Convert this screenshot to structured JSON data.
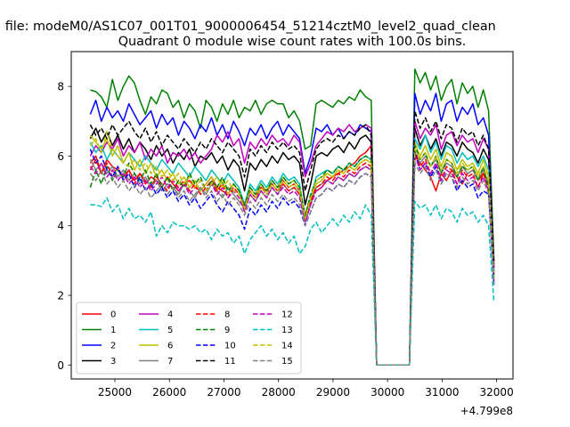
{
  "chart_data": {
    "type": "line",
    "suptitle": "n file: modeM0/AS1C07_001T01_9000006454_51214cztM0_level2_quad_clean",
    "title": "Quadrant 0 module wise count rates with 100.0s bins.",
    "xlabel": "",
    "ylabel": "",
    "x_offset_label": "+4.799e8",
    "xlim": [
      24200,
      32300
    ],
    "ylim": [
      -0.4,
      9.0
    ],
    "xticks": [
      25000,
      26000,
      27000,
      28000,
      29000,
      30000,
      31000,
      32000
    ],
    "yticks": [
      0,
      2,
      4,
      6,
      8
    ],
    "grid": false,
    "legend_placement": "lower-left",
    "segments": [
      [
        24550,
        29700
      ],
      [
        29800,
        30400
      ],
      [
        30500,
        31950
      ]
    ],
    "series": [
      {
        "name": "0",
        "color": "#ff0000",
        "dash": "solid",
        "values1": [
          5.8,
          6.0,
          5.5,
          5.9,
          5.7,
          5.6,
          5.4,
          5.6,
          5.3,
          5.5,
          5.2,
          5.4,
          5.3,
          5.1,
          5.4,
          5.2,
          5.0,
          5.2,
          5.3,
          5.1,
          5.0,
          5.2,
          5.4,
          5.1,
          5.0,
          4.9,
          5.2,
          5.0,
          4.5,
          5.0,
          4.8,
          5.1,
          5.0,
          5.2,
          5.0,
          5.3,
          5.1,
          5.2,
          5.0,
          4.3,
          4.8,
          5.0,
          5.1,
          5.3,
          5.4,
          5.5,
          5.6,
          5.7,
          5.8,
          6.0,
          6.1,
          6.3
        ],
        "values2": [
          6.0,
          5.8,
          5.6,
          5.4,
          5.0,
          5.5,
          5.3,
          5.6,
          5.4,
          5.2,
          5.5,
          5.6,
          5.3,
          5.5,
          5.2,
          2.8
        ]
      },
      {
        "name": "1",
        "color": "#008000",
        "dash": "solid",
        "values1": [
          7.9,
          7.85,
          7.7,
          7.4,
          8.2,
          7.6,
          8.0,
          8.3,
          8.1,
          7.6,
          7.2,
          7.7,
          7.5,
          7.9,
          7.8,
          7.4,
          7.6,
          7.1,
          7.5,
          7.3,
          6.8,
          7.6,
          7.4,
          7.0,
          7.5,
          7.2,
          7.6,
          7.1,
          7.4,
          7.3,
          7.6,
          7.2,
          7.5,
          7.6,
          7.5,
          7.5,
          7.1,
          7.3,
          7.0,
          6.2,
          6.3,
          7.5,
          7.6,
          7.5,
          7.4,
          7.6,
          7.5,
          7.7,
          7.6,
          7.9,
          7.7,
          7.6
        ],
        "values2": [
          8.5,
          8.1,
          8.4,
          7.9,
          8.3,
          7.6,
          8.0,
          8.2,
          7.5,
          8.1,
          7.8,
          8.0,
          7.4,
          7.9,
          7.3,
          3.0
        ]
      },
      {
        "name": "2",
        "color": "#0000ff",
        "dash": "solid",
        "values1": [
          7.2,
          7.6,
          7.0,
          7.4,
          7.1,
          7.3,
          7.0,
          7.5,
          7.2,
          6.9,
          7.1,
          7.3,
          6.8,
          7.2,
          6.9,
          7.1,
          6.6,
          7.0,
          6.8,
          6.5,
          6.9,
          6.7,
          7.1,
          6.6,
          6.9,
          6.5,
          7.0,
          6.7,
          6.3,
          6.8,
          6.6,
          6.9,
          6.5,
          6.8,
          7.0,
          6.6,
          6.9,
          6.7,
          6.5,
          5.5,
          6.0,
          6.8,
          6.7,
          6.9,
          6.6,
          6.8,
          6.5,
          6.7,
          6.6,
          6.9,
          6.8,
          6.7
        ],
        "values2": [
          7.8,
          7.2,
          7.6,
          7.3,
          7.8,
          7.0,
          7.5,
          7.6,
          7.0,
          7.4,
          7.2,
          7.5,
          6.9,
          7.1,
          6.6,
          2.7
        ]
      },
      {
        "name": "3",
        "color": "#000000",
        "dash": "solid",
        "values1": [
          6.5,
          6.8,
          6.4,
          6.7,
          6.3,
          6.6,
          6.2,
          6.5,
          6.1,
          6.4,
          6.2,
          5.9,
          6.3,
          6.0,
          6.2,
          5.8,
          6.1,
          5.9,
          6.2,
          5.7,
          6.0,
          5.9,
          6.1,
          5.8,
          6.0,
          5.6,
          5.9,
          5.7,
          5.0,
          5.8,
          5.6,
          5.9,
          5.7,
          6.0,
          5.8,
          6.1,
          5.9,
          6.0,
          5.8,
          4.6,
          5.2,
          6.0,
          6.1,
          6.0,
          6.2,
          6.3,
          6.1,
          6.4,
          6.2,
          6.5,
          6.6,
          6.4
        ],
        "values2": [
          6.8,
          6.3,
          6.6,
          6.2,
          6.5,
          6.0,
          6.4,
          6.3,
          6.0,
          6.4,
          6.2,
          6.1,
          5.8,
          6.2,
          5.9,
          2.9
        ]
      },
      {
        "name": "4",
        "color": "#bf00bf",
        "dash": "solid",
        "values1": [
          6.0,
          6.3,
          6.1,
          6.4,
          6.2,
          6.5,
          6.0,
          6.3,
          6.1,
          6.4,
          5.9,
          6.2,
          6.0,
          6.3,
          5.8,
          6.1,
          6.0,
          6.2,
          5.9,
          6.1,
          5.8,
          6.0,
          6.2,
          6.6,
          6.4,
          6.7,
          6.3,
          6.5,
          5.8,
          6.4,
          6.2,
          6.5,
          6.3,
          6.6,
          6.4,
          6.5,
          6.3,
          6.6,
          6.4,
          5.4,
          5.8,
          6.3,
          6.5,
          6.7,
          6.6,
          6.8,
          6.7,
          6.9,
          6.7,
          6.8,
          6.9,
          6.8
        ],
        "values2": [
          7.0,
          6.5,
          6.8,
          6.6,
          6.9,
          6.2,
          6.6,
          6.7,
          6.3,
          6.6,
          6.4,
          6.5,
          6.1,
          6.5,
          6.2,
          2.8
        ]
      },
      {
        "name": "5",
        "color": "#00bfbf",
        "dash": "solid",
        "values1": [
          6.4,
          6.1,
          6.3,
          5.9,
          6.2,
          6.0,
          5.8,
          6.1,
          5.9,
          5.7,
          6.0,
          5.8,
          5.6,
          5.9,
          5.7,
          5.5,
          5.8,
          5.6,
          5.4,
          5.7,
          5.5,
          5.3,
          5.6,
          5.4,
          5.2,
          5.5,
          5.3,
          5.1,
          4.6,
          5.2,
          5.0,
          5.3,
          5.1,
          5.4,
          5.2,
          5.5,
          5.3,
          5.4,
          5.2,
          4.2,
          4.8,
          5.4,
          5.5,
          5.6,
          5.5,
          5.7,
          5.6,
          5.8,
          5.7,
          5.9,
          6.0,
          5.9
        ],
        "values2": [
          6.5,
          6.2,
          6.6,
          6.1,
          6.4,
          5.9,
          6.3,
          6.2,
          5.8,
          6.1,
          5.9,
          6.0,
          5.7,
          6.0,
          5.6,
          2.5
        ]
      },
      {
        "name": "6",
        "color": "#bfbf00",
        "dash": "solid",
        "values1": [
          6.6,
          6.4,
          6.2,
          6.5,
          6.0,
          6.3,
          5.8,
          6.1,
          5.6,
          5.9,
          5.5,
          5.8,
          5.4,
          5.6,
          5.3,
          5.5,
          5.2,
          5.4,
          5.1,
          5.3,
          5.0,
          5.2,
          5.4,
          5.0,
          5.3,
          4.9,
          5.2,
          5.0,
          4.4,
          5.1,
          4.9,
          5.2,
          5.0,
          5.3,
          5.1,
          5.4,
          5.2,
          5.3,
          5.1,
          4.2,
          4.7,
          5.2,
          5.3,
          5.5,
          5.4,
          5.6,
          5.5,
          5.7,
          5.6,
          5.8,
          5.9,
          5.8
        ],
        "values2": [
          6.4,
          6.0,
          6.3,
          5.9,
          6.2,
          5.7,
          6.1,
          6.0,
          5.6,
          5.9,
          5.7,
          5.8,
          5.5,
          5.9,
          5.4,
          2.4
        ]
      },
      {
        "name": "7",
        "color": "#808080",
        "dash": "solid",
        "values1": [
          5.9,
          5.6,
          5.8,
          5.5,
          5.7,
          5.4,
          5.6,
          5.3,
          5.5,
          5.2,
          5.4,
          5.1,
          5.3,
          5.0,
          5.2,
          5.1,
          4.9,
          5.2,
          5.0,
          4.8,
          5.1,
          4.9,
          5.2,
          5.0,
          4.8,
          5.1,
          4.9,
          4.7,
          4.5,
          4.9,
          4.7,
          5.0,
          4.8,
          5.1,
          4.9,
          5.2,
          5.0,
          5.1,
          4.9,
          4.1,
          4.6,
          5.1,
          5.2,
          5.3,
          5.2,
          5.4,
          5.3,
          5.5,
          5.4,
          5.6,
          5.7,
          5.6
        ],
        "values2": [
          6.1,
          5.8,
          6.0,
          5.7,
          5.9,
          5.5,
          5.8,
          5.7,
          5.4,
          5.7,
          5.5,
          5.6,
          5.3,
          5.6,
          5.2,
          2.6
        ]
      },
      {
        "name": "8",
        "color": "#ff0000",
        "dash": "dashed",
        "values1": [
          5.6,
          5.9,
          5.5,
          5.8,
          5.4,
          5.7,
          5.3,
          5.6,
          5.2,
          5.5,
          5.3,
          5.1,
          5.4,
          5.2,
          5.0,
          5.3,
          5.1,
          5.3,
          5.0,
          5.2,
          4.9,
          5.1,
          5.3,
          5.0,
          5.2,
          4.8,
          5.1,
          4.9,
          4.6,
          5.0,
          4.8,
          5.1,
          4.9,
          5.2,
          5.0,
          5.2,
          5.0,
          5.1,
          4.9,
          4.2,
          4.7,
          5.1,
          5.2,
          5.4,
          5.3,
          5.5,
          5.4,
          5.6,
          5.5,
          5.7,
          5.8,
          5.7
        ],
        "values2": [
          6.2,
          5.7,
          5.9,
          5.5,
          5.8,
          5.3,
          5.7,
          5.6,
          5.2,
          5.6,
          5.4,
          5.5,
          5.1,
          5.5,
          5.0,
          2.5
        ]
      },
      {
        "name": "9",
        "color": "#008000",
        "dash": "dashed",
        "values1": [
          5.1,
          5.6,
          5.2,
          5.7,
          5.3,
          5.6,
          5.4,
          5.8,
          5.5,
          5.3,
          5.6,
          5.2,
          5.5,
          5.1,
          5.4,
          5.0,
          5.3,
          5.1,
          5.5,
          5.2,
          5.4,
          5.0,
          5.3,
          5.1,
          5.4,
          5.0,
          5.2,
          5.0,
          4.6,
          5.1,
          4.9,
          5.2,
          5.0,
          5.3,
          5.1,
          5.4,
          5.2,
          5.3,
          5.1,
          4.3,
          4.9,
          5.3,
          5.4,
          5.6,
          5.5,
          5.7,
          5.6,
          5.8,
          5.7,
          5.9,
          6.0,
          5.9
        ],
        "values2": [
          6.3,
          5.9,
          6.1,
          5.7,
          6.0,
          5.5,
          5.9,
          5.8,
          5.4,
          5.7,
          5.6,
          5.7,
          5.3,
          5.7,
          5.1,
          2.6
        ]
      },
      {
        "name": "10",
        "color": "#0000ff",
        "dash": "dashed",
        "values1": [
          6.2,
          5.8,
          6.0,
          5.6,
          5.4,
          5.7,
          5.3,
          5.5,
          5.1,
          5.4,
          5.0,
          5.2,
          4.9,
          5.1,
          4.8,
          5.0,
          4.7,
          4.9,
          4.6,
          4.8,
          4.5,
          4.7,
          4.9,
          4.6,
          4.4,
          4.7,
          4.5,
          4.3,
          3.9,
          4.5,
          4.3,
          4.6,
          4.4,
          4.7,
          4.5,
          4.8,
          4.6,
          4.7,
          4.5,
          4.0,
          4.4,
          4.8,
          4.9,
          5.1,
          5.0,
          5.2,
          5.1,
          5.3,
          5.2,
          5.4,
          5.5,
          5.4
        ],
        "values2": [
          6.1,
          5.6,
          5.8,
          5.4,
          5.7,
          5.2,
          5.5,
          5.4,
          5.0,
          5.3,
          5.1,
          5.2,
          4.8,
          5.0,
          4.9,
          2.3
        ]
      },
      {
        "name": "11",
        "color": "#000000",
        "dash": "dashed",
        "values1": [
          6.9,
          6.6,
          6.8,
          6.5,
          6.9,
          6.6,
          6.8,
          7.0,
          6.7,
          6.5,
          6.8,
          6.4,
          6.7,
          6.3,
          6.6,
          6.4,
          6.2,
          6.5,
          6.3,
          6.1,
          6.4,
          6.2,
          6.5,
          6.3,
          6.1,
          6.4,
          6.2,
          6.0,
          5.4,
          6.2,
          6.0,
          6.3,
          6.1,
          6.4,
          6.2,
          6.4,
          6.2,
          6.3,
          6.1,
          5.0,
          5.6,
          6.2,
          6.4,
          6.5,
          6.4,
          6.6,
          6.5,
          6.7,
          6.6,
          6.8,
          6.9,
          6.6
        ],
        "values2": [
          7.3,
          6.8,
          7.1,
          6.7,
          7.0,
          6.5,
          6.9,
          6.8,
          6.4,
          6.8,
          6.6,
          6.7,
          6.3,
          6.6,
          6.2,
          2.9
        ]
      },
      {
        "name": "12",
        "color": "#bf00bf",
        "dash": "dashed",
        "values1": [
          5.7,
          5.5,
          5.8,
          5.4,
          5.6,
          5.3,
          5.5,
          5.2,
          5.4,
          5.1,
          5.3,
          5.0,
          5.2,
          5.4,
          5.1,
          5.3,
          5.0,
          5.2,
          4.9,
          5.1,
          5.3,
          5.0,
          5.2,
          4.9,
          5.1,
          4.8,
          5.0,
          4.8,
          4.4,
          4.9,
          4.7,
          5.0,
          4.8,
          5.1,
          4.9,
          5.1,
          4.9,
          5.0,
          4.8,
          4.1,
          4.6,
          5.0,
          5.1,
          5.3,
          5.2,
          5.4,
          5.3,
          5.5,
          5.4,
          5.6,
          5.7,
          5.6
        ],
        "values2": [
          6.0,
          5.6,
          5.8,
          5.5,
          5.8,
          5.3,
          5.6,
          5.5,
          5.2,
          5.5,
          5.3,
          5.4,
          5.1,
          5.4,
          5.0,
          2.4
        ]
      },
      {
        "name": "13",
        "color": "#00bfbf",
        "dash": "dashed",
        "values1": [
          4.6,
          4.6,
          4.55,
          4.8,
          4.4,
          4.6,
          4.2,
          4.5,
          4.2,
          4.3,
          4.1,
          4.4,
          3.7,
          4.0,
          3.8,
          4.1,
          4.0,
          4.0,
          3.9,
          4.0,
          3.8,
          3.9,
          3.6,
          3.9,
          3.7,
          3.8,
          3.5,
          3.7,
          3.2,
          3.6,
          3.8,
          4.0,
          3.7,
          3.9,
          3.6,
          3.8,
          3.5,
          3.7,
          3.2,
          3.4,
          3.9,
          4.1,
          3.8,
          4.0,
          4.2,
          4.0,
          4.3,
          4.1,
          4.4,
          4.2,
          4.6,
          4.3
        ],
        "values2": [
          4.7,
          4.5,
          4.6,
          4.3,
          4.6,
          4.2,
          4.5,
          4.4,
          4.1,
          4.5,
          4.3,
          4.4,
          4.1,
          4.3,
          4.0,
          1.8
        ]
      },
      {
        "name": "14",
        "color": "#bfbf00",
        "dash": "dashed",
        "values1": [
          6.3,
          6.5,
          6.1,
          6.7,
          6.2,
          6.0,
          5.8,
          5.7,
          5.9,
          5.6,
          5.8,
          5.5,
          5.7,
          5.4,
          5.6,
          5.3,
          5.5,
          5.2,
          5.4,
          5.1,
          5.3,
          5.0,
          5.2,
          5.4,
          5.1,
          5.3,
          5.0,
          4.9,
          4.5,
          5.0,
          4.8,
          5.1,
          4.9,
          5.2,
          5.0,
          5.3,
          5.1,
          5.2,
          5.0,
          4.2,
          4.8,
          5.3,
          5.4,
          5.5,
          5.4,
          5.6,
          5.5,
          5.7,
          5.6,
          5.8,
          5.9,
          5.8
        ],
        "values2": [
          6.2,
          5.9,
          6.1,
          5.7,
          6.0,
          5.6,
          5.9,
          5.8,
          5.5,
          5.8,
          5.6,
          5.7,
          5.4,
          5.7,
          5.3,
          2.5
        ]
      },
      {
        "name": "15",
        "color": "#808080",
        "dash": "dashed",
        "values1": [
          5.5,
          5.3,
          5.6,
          5.2,
          5.4,
          5.1,
          5.3,
          5.0,
          5.2,
          4.9,
          5.1,
          4.8,
          5.0,
          5.2,
          4.9,
          5.1,
          4.8,
          5.0,
          4.7,
          4.9,
          5.1,
          4.8,
          5.0,
          4.7,
          4.9,
          4.6,
          4.8,
          4.6,
          4.3,
          4.7,
          4.5,
          4.8,
          4.6,
          4.9,
          4.7,
          4.9,
          4.7,
          4.8,
          4.6,
          4.0,
          4.4,
          4.8,
          4.9,
          5.1,
          5.0,
          5.2,
          5.1,
          5.3,
          5.2,
          5.4,
          5.5,
          5.4
        ],
        "values2": [
          5.8,
          5.5,
          5.7,
          5.3,
          5.6,
          5.2,
          5.5,
          5.4,
          5.1,
          5.4,
          5.2,
          5.3,
          5.0,
          5.3,
          4.9,
          2.3
        ]
      }
    ]
  }
}
